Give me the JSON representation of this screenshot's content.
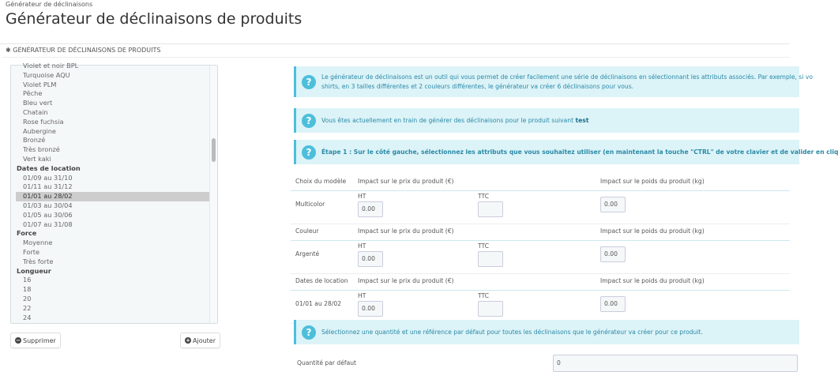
{
  "breadcrumb": "Générateur de déclinaisons",
  "page_title": "Générateur de déclinaisons de produits",
  "panel_heading": "GÉNÉRATEUR DE DÉCLINAISONS DE PRODUITS",
  "attribute_list": [
    {
      "label": "Violet et noir BPL",
      "type": "item"
    },
    {
      "label": "Turquoise AQU",
      "type": "item"
    },
    {
      "label": "Violet PLM",
      "type": "item"
    },
    {
      "label": "Pêche",
      "type": "item"
    },
    {
      "label": "Bleu vert",
      "type": "item"
    },
    {
      "label": "Chatain",
      "type": "item"
    },
    {
      "label": "Rose fuchsia",
      "type": "item"
    },
    {
      "label": "Aubergine",
      "type": "item"
    },
    {
      "label": "Bronzé",
      "type": "item"
    },
    {
      "label": "Très bronzé",
      "type": "item"
    },
    {
      "label": "Vert kaki",
      "type": "item"
    },
    {
      "label": "Dates de location",
      "type": "group"
    },
    {
      "label": "01/09 au 31/10",
      "type": "item"
    },
    {
      "label": "01/11 au 31/12",
      "type": "item"
    },
    {
      "label": "01/01 au 28/02",
      "type": "item",
      "selected": true
    },
    {
      "label": "01/03 au 30/04",
      "type": "item"
    },
    {
      "label": "01/05 au 30/06",
      "type": "item"
    },
    {
      "label": "01/07 au 31/08",
      "type": "item"
    },
    {
      "label": "Force",
      "type": "group"
    },
    {
      "label": "Moyenne",
      "type": "item"
    },
    {
      "label": "Forte",
      "type": "item"
    },
    {
      "label": "Très forte",
      "type": "item"
    },
    {
      "label": "Longueur",
      "type": "group"
    },
    {
      "label": "16",
      "type": "item"
    },
    {
      "label": "18",
      "type": "item"
    },
    {
      "label": "20",
      "type": "item"
    },
    {
      "label": "22",
      "type": "item"
    },
    {
      "label": "24",
      "type": "item"
    }
  ],
  "buttons": {
    "remove": "Supprimer",
    "add": "Ajouter"
  },
  "alerts": {
    "intro_line1": "Le générateur de déclinaisons est un outil qui vous permet de créer facilement une série de déclinaisons en sélectionnant les attributs associés. Par exemple, si vo",
    "intro_line2": "shirts, en 3 tailles différentes et 2 couleurs différentes, le générateur va créer 6 déclinaisons pour vous.",
    "product_prefix": "Vous êtes actuellement en train de générer des déclinaisons pour le produit suivant ",
    "product_name": "test",
    "step1": "Étape 1 : Sur le côté gauche, sélectionnez les attributs que vous souhaitez utiliser (en maintenant la touche \"CTRL\" de votre clavier et de valider en cliq",
    "quantity_info": "Sélectionnez une quantité et une référence par défaut pour toutes les déclinaisons que le générateur va créer pour ce produit."
  },
  "impact_groups": [
    {
      "group": "Choix du modèle",
      "price_header": "Impact sur le prix du produit (€)",
      "weight_header": "Impact sur le poids du produit (kg)",
      "value": "Multicolor",
      "ht_label": "HT",
      "ttc_label": "TTC",
      "ht": "0.00",
      "ttc": "",
      "weight": "0.00"
    },
    {
      "group": "Couleur",
      "price_header": "Impact sur le prix du produit (€)",
      "weight_header": "Impact sur le poids du produit (kg)",
      "value": "Argenté",
      "ht_label": "HT",
      "ttc_label": "TTC",
      "ht": "0.00",
      "ttc": "",
      "weight": "0.00"
    },
    {
      "group": "Dates de location",
      "price_header": "Impact sur le prix du produit (€)",
      "weight_header": "Impact sur le poids du produit (kg)",
      "value": "01/01 au 28/02",
      "ht_label": "HT",
      "ttc_label": "TTC",
      "ht": "0.00",
      "ttc": "",
      "weight": "0.00"
    }
  ],
  "default_quantity": {
    "label": "Quantité par défaut",
    "value": "0"
  },
  "colors": {
    "info_bg": "#dcf3f8",
    "info_accent": "#4dbfdb",
    "info_text": "#2a8aa6"
  },
  "icons": {
    "alert": "question-circle-icon",
    "remove": "minus-circle-icon",
    "add": "plus-circle-icon",
    "panel": "cogs-icon"
  }
}
